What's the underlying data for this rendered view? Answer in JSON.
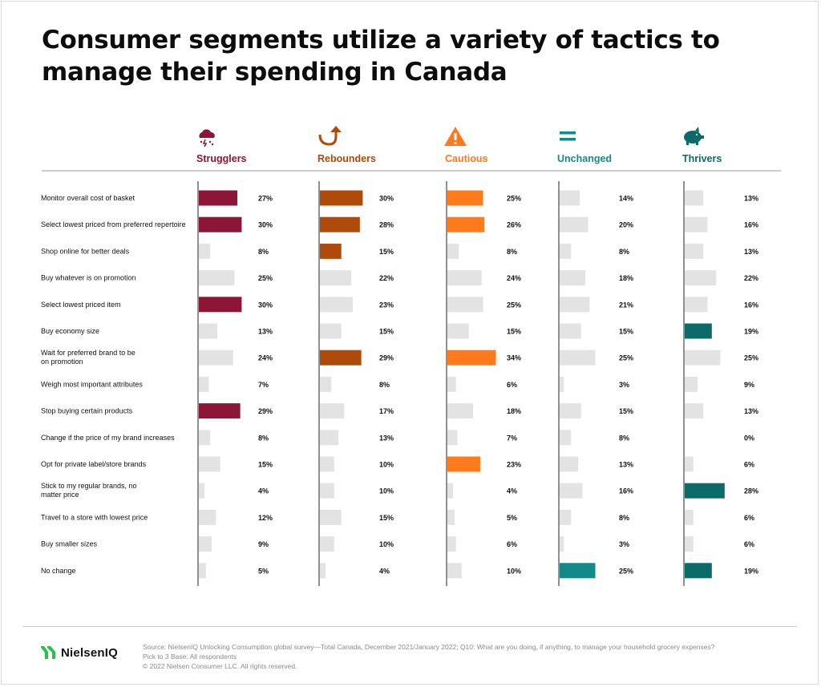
{
  "title": "Consumer segments utilize a variety of tactics to manage their spending in Canada",
  "colors": {
    "strugglers": "#8c1538",
    "rebounders": "#b04a0b",
    "cautious": "#ff7a1a",
    "unchanged": "#138a8a",
    "thrivers": "#0b6b68",
    "neutral": "#e3e3e3"
  },
  "chart_data": {
    "type": "bar",
    "orientation": "horizontal",
    "categories": [
      "Monitor overall cost of basket",
      "Select lowest priced from preferred repertoire",
      "Shop online for better deals",
      "Buy whatever is on promotion",
      "Select lowest priced item",
      "Buy economy size",
      "Wait for preferred brand to be on promotion",
      "Weigh most important attributes",
      "Stop buying certain products",
      "Change if the price of my brand increases",
      "Opt for private label/store brands",
      "Stick to my regular brands, no matter price",
      "Travel to a store with lowest price",
      "Buy smaller sizes",
      "No change"
    ],
    "category_lines": [
      [
        "Monitor overall cost of basket"
      ],
      [
        "Select lowest priced from preferred repertoire"
      ],
      [
        "Shop online for better deals"
      ],
      [
        "Buy whatever is on promotion"
      ],
      [
        "Select lowest priced item"
      ],
      [
        "Buy economy size"
      ],
      [
        "Wait for preferred brand to be",
        "on promotion"
      ],
      [
        "Weigh most important attributes"
      ],
      [
        "Stop buying certain products"
      ],
      [
        "Change if the price of my brand increases"
      ],
      [
        "Opt for private label/store brands"
      ],
      [
        "Stick to my regular brands, no",
        "matter price"
      ],
      [
        "Travel to a store with lowest price"
      ],
      [
        "Buy smaller sizes"
      ],
      [
        "No change"
      ]
    ],
    "unit": "%",
    "series": [
      {
        "name": "Strugglers",
        "icon": "storm-cloud-icon",
        "color_key": "strugglers",
        "values": [
          27,
          30,
          8,
          25,
          30,
          13,
          24,
          7,
          29,
          8,
          15,
          4,
          12,
          9,
          5
        ],
        "highlighted": [
          true,
          true,
          false,
          false,
          true,
          false,
          false,
          false,
          true,
          false,
          false,
          false,
          false,
          false,
          false
        ]
      },
      {
        "name": "Rebounders",
        "icon": "up-arrow-icon",
        "color_key": "rebounders",
        "values": [
          30,
          28,
          15,
          22,
          23,
          15,
          29,
          8,
          17,
          13,
          10,
          10,
          15,
          10,
          4
        ],
        "highlighted": [
          true,
          true,
          true,
          false,
          false,
          false,
          true,
          false,
          false,
          false,
          false,
          false,
          false,
          false,
          false
        ]
      },
      {
        "name": "Cautious",
        "icon": "warning-icon",
        "color_key": "cautious",
        "values": [
          25,
          26,
          8,
          24,
          25,
          15,
          34,
          6,
          18,
          7,
          23,
          4,
          5,
          6,
          10
        ],
        "highlighted": [
          true,
          true,
          false,
          false,
          false,
          false,
          true,
          false,
          false,
          false,
          true,
          false,
          false,
          false,
          false
        ]
      },
      {
        "name": "Unchanged",
        "icon": "equals-icon",
        "color_key": "unchanged",
        "values": [
          14,
          20,
          8,
          18,
          21,
          15,
          25,
          3,
          15,
          8,
          13,
          16,
          8,
          3,
          25
        ],
        "highlighted": [
          false,
          false,
          false,
          false,
          false,
          false,
          false,
          false,
          false,
          false,
          false,
          false,
          false,
          false,
          true
        ]
      },
      {
        "name": "Thrivers",
        "icon": "piggy-bank-icon",
        "color_key": "thrivers",
        "values": [
          13,
          16,
          13,
          22,
          16,
          19,
          25,
          9,
          13,
          0,
          6,
          28,
          6,
          6,
          19
        ],
        "highlighted": [
          false,
          false,
          false,
          false,
          false,
          true,
          false,
          false,
          false,
          false,
          false,
          true,
          false,
          false,
          true
        ]
      }
    ],
    "grid": false,
    "legend": "top"
  },
  "footer": {
    "logo_text": "NielsenIQ",
    "source_lines": [
      "Source: NielsenIQ Unlocking Consumption global survey—Total Canada, December 2021/January 2022; Q10: What are you doing, if anything, to manage your household grocery expenses?",
      "Pick to 3 Base: All respondents",
      "© 2022 Nielsen Consumer LLC. All rights reserved."
    ]
  }
}
